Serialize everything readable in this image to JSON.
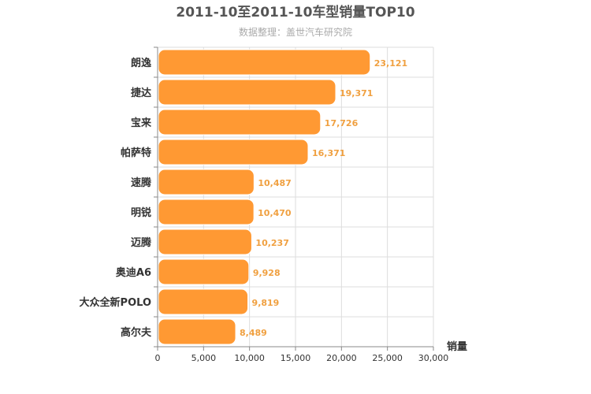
{
  "chart_data": {
    "type": "bar",
    "orientation": "horizontal",
    "title": "2011-10至2011-10车型销量TOP10",
    "subtitle": "数据整理：盖世汽车研究院",
    "xlabel": "销量",
    "ylabel": "",
    "categories": [
      "朗逸",
      "捷达",
      "宝来",
      "帕萨特",
      "速腾",
      "明锐",
      "迈腾",
      "奥迪A6",
      "大众全新POLO",
      "高尔夫"
    ],
    "values": [
      23121,
      19371,
      17726,
      16371,
      10487,
      10470,
      10237,
      9928,
      9819,
      8489
    ],
    "value_labels": [
      "23,121",
      "19,371",
      "17,726",
      "16,371",
      "10,487",
      "10,470",
      "10,237",
      "9,928",
      "9,819",
      "8,489"
    ],
    "xlim": [
      0,
      30000
    ],
    "ticks": [
      0,
      5000,
      10000,
      15000,
      20000,
      25000,
      30000
    ],
    "tick_labels": [
      "0",
      "5,000",
      "10,000",
      "15,000",
      "20,000",
      "25,000",
      "30,000"
    ],
    "grid": true,
    "legend": "none",
    "colors": {
      "bar": "#ff9933",
      "bar_stroke": "#ffffff",
      "value_label": "#f0a040",
      "grid": "#dddddd",
      "axis": "#888888"
    }
  }
}
